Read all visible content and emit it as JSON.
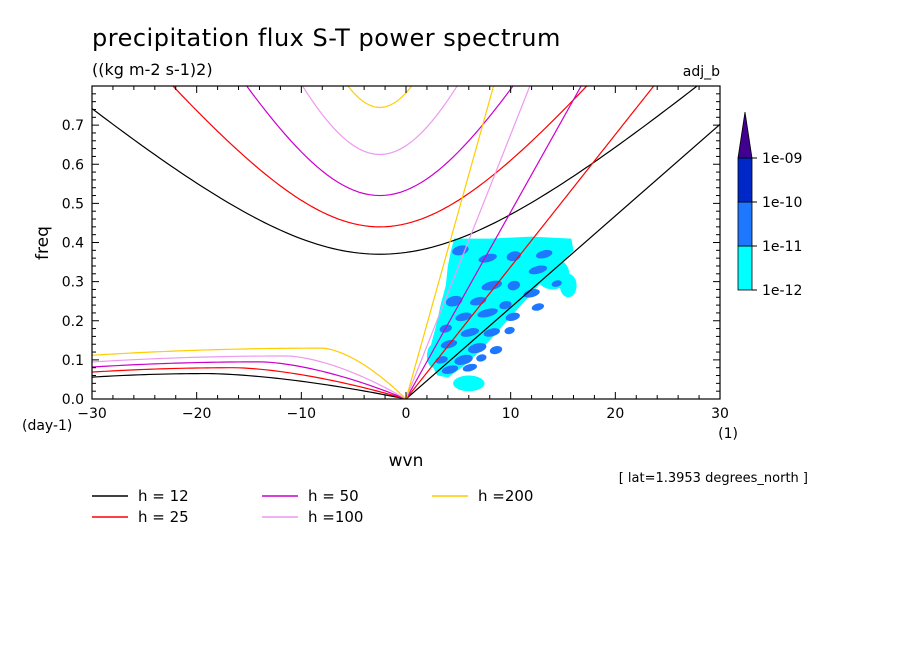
{
  "chart_data": {
    "type": "contour",
    "title": "precipitation flux S-T power spectrum",
    "units": "((kg m-2 s-1)2)",
    "dataset_label": "adj_b",
    "xlabel": "wvn",
    "x_units": "(1)",
    "ylabel": "freq",
    "y_units": "(day-1)",
    "xlim": [
      -30,
      30
    ],
    "ylim": [
      0,
      0.8
    ],
    "xticks": [
      -30,
      -20,
      -10,
      0,
      10,
      20,
      30
    ],
    "yticks": [
      0.0,
      0.1,
      0.2,
      0.3,
      0.4,
      0.5,
      0.6,
      0.7
    ],
    "footnote": "[ lat=1.3953 degrees_north ]",
    "colorbar": {
      "levels": [
        "1e-12",
        "1e-11",
        "1e-10",
        "1e-09"
      ],
      "colors": [
        "#00ffff",
        "#1e78ff",
        "#0028c8",
        "#400090"
      ]
    },
    "dispersion_curves": [
      {
        "label": "h = 12",
        "h": 12,
        "color": "#000000",
        "inertia_gravity_min_freq": 0.37,
        "rossby_peak_freq": 0.065
      },
      {
        "label": "h = 25",
        "h": 25,
        "color": "#ff0000",
        "inertia_gravity_min_freq": 0.44,
        "rossby_peak_freq": 0.08
      },
      {
        "label": "h = 50",
        "h": 50,
        "color": "#cc00cc",
        "inertia_gravity_min_freq": 0.52,
        "rossby_peak_freq": 0.095
      },
      {
        "label": "h =100",
        "h": 100,
        "color": "#ee99ee",
        "inertia_gravity_min_freq": 0.625,
        "rossby_peak_freq": 0.11
      },
      {
        "label": "h =200",
        "h": 200,
        "color": "#ffcc00",
        "inertia_gravity_min_freq": 0.745,
        "rossby_peak_freq": 0.13
      }
    ],
    "kelvin_slopes": [
      {
        "h": 12,
        "freq_per_wvn": 0.0234
      },
      {
        "h": 25,
        "freq_per_wvn": 0.0338
      },
      {
        "h": 50,
        "freq_per_wvn": 0.0478
      },
      {
        "h": 100,
        "freq_per_wvn": 0.0676
      },
      {
        "h": 200,
        "freq_per_wvn": 0.0956
      }
    ]
  }
}
